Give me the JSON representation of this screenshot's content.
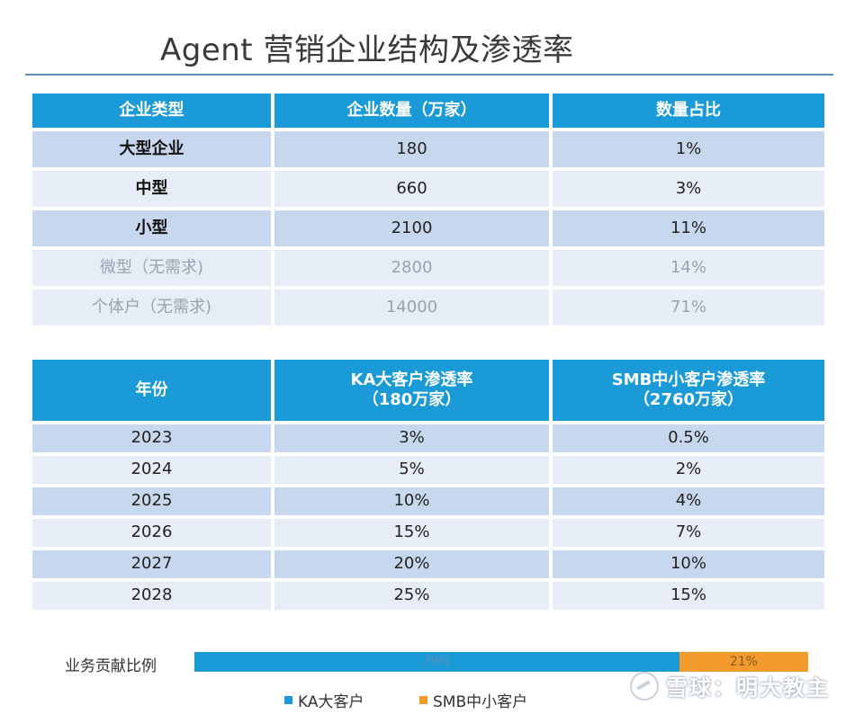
{
  "title": "Agent 营销企业结构及渗透率",
  "colors": {
    "header_blue": "#1a9ad6",
    "ka": "#1a9ad6",
    "smb": "#f39a2c"
  },
  "table1": {
    "headers": [
      "企业类型",
      "企业数量（万家）",
      "数量占比"
    ],
    "rows": [
      {
        "type": "大型企业",
        "count": "180",
        "share": "1%"
      },
      {
        "type": "中型",
        "count": "660",
        "share": "3%"
      },
      {
        "type": "小型",
        "count": "2100",
        "share": "11%"
      },
      {
        "type": "微型（无需求)",
        "count": "2800",
        "share": "14%"
      },
      {
        "type": "个体户（无需求)",
        "count": "14000",
        "share": "71%"
      }
    ]
  },
  "table2": {
    "headers": [
      {
        "line1": "年份",
        "line2": ""
      },
      {
        "line1": "KA大客户渗透率",
        "line2": "（180万家）"
      },
      {
        "line1": "SMB中小客户渗透率",
        "line2": "（2760万家）"
      }
    ],
    "rows": [
      {
        "year": "2023",
        "ka": "3%",
        "smb": "0.5%"
      },
      {
        "year": "2024",
        "ka": "5%",
        "smb": "2%"
      },
      {
        "year": "2025",
        "ka": "10%",
        "smb": "4%"
      },
      {
        "year": "2026",
        "ka": "15%",
        "smb": "7%"
      },
      {
        "year": "2027",
        "ka": "20%",
        "smb": "10%"
      },
      {
        "year": "2028",
        "ka": "25%",
        "smb": "15%"
      }
    ]
  },
  "contribution": {
    "label": "业务贡献比例",
    "ka_label": "79%",
    "smb_label": "21%",
    "ka_share": 79,
    "smb_share": 21
  },
  "legend": {
    "ka": "KA大客户",
    "smb": "SMB中小客户"
  },
  "watermark": "雪球：明大教主"
}
